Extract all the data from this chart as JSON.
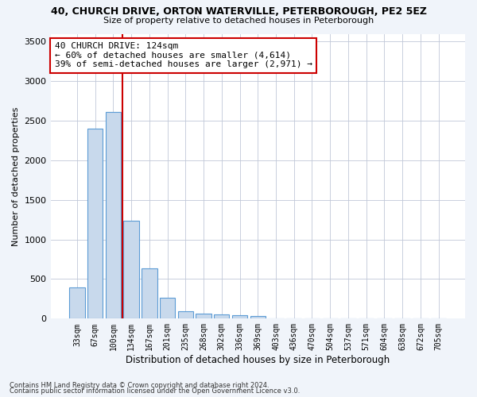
{
  "title1": "40, CHURCH DRIVE, ORTON WATERVILLE, PETERBOROUGH, PE2 5EZ",
  "title2": "Size of property relative to detached houses in Peterborough",
  "xlabel": "Distribution of detached houses by size in Peterborough",
  "ylabel": "Number of detached properties",
  "categories": [
    "33sqm",
    "67sqm",
    "100sqm",
    "134sqm",
    "167sqm",
    "201sqm",
    "235sqm",
    "268sqm",
    "302sqm",
    "336sqm",
    "369sqm",
    "403sqm",
    "436sqm",
    "470sqm",
    "504sqm",
    "537sqm",
    "571sqm",
    "604sqm",
    "638sqm",
    "672sqm",
    "705sqm"
  ],
  "values": [
    390,
    2400,
    2610,
    1240,
    640,
    260,
    95,
    60,
    55,
    40,
    30,
    0,
    0,
    0,
    0,
    0,
    0,
    0,
    0,
    0,
    0
  ],
  "bar_color": "#c8d9ec",
  "bar_edge_color": "#5b9bd5",
  "vline_x": 2.5,
  "vline_color": "#cc0000",
  "annotation_text": "40 CHURCH DRIVE: 124sqm\n← 60% of detached houses are smaller (4,614)\n39% of semi-detached houses are larger (2,971) →",
  "annotation_box_color": "#ffffff",
  "annotation_box_edge": "#cc0000",
  "ylim": [
    0,
    3600
  ],
  "yticks": [
    0,
    500,
    1000,
    1500,
    2000,
    2500,
    3000,
    3500
  ],
  "footnote1": "Contains HM Land Registry data © Crown copyright and database right 2024.",
  "footnote2": "Contains public sector information licensed under the Open Government Licence v3.0.",
  "bg_color": "#f0f4fa",
  "plot_bg": "#ffffff"
}
